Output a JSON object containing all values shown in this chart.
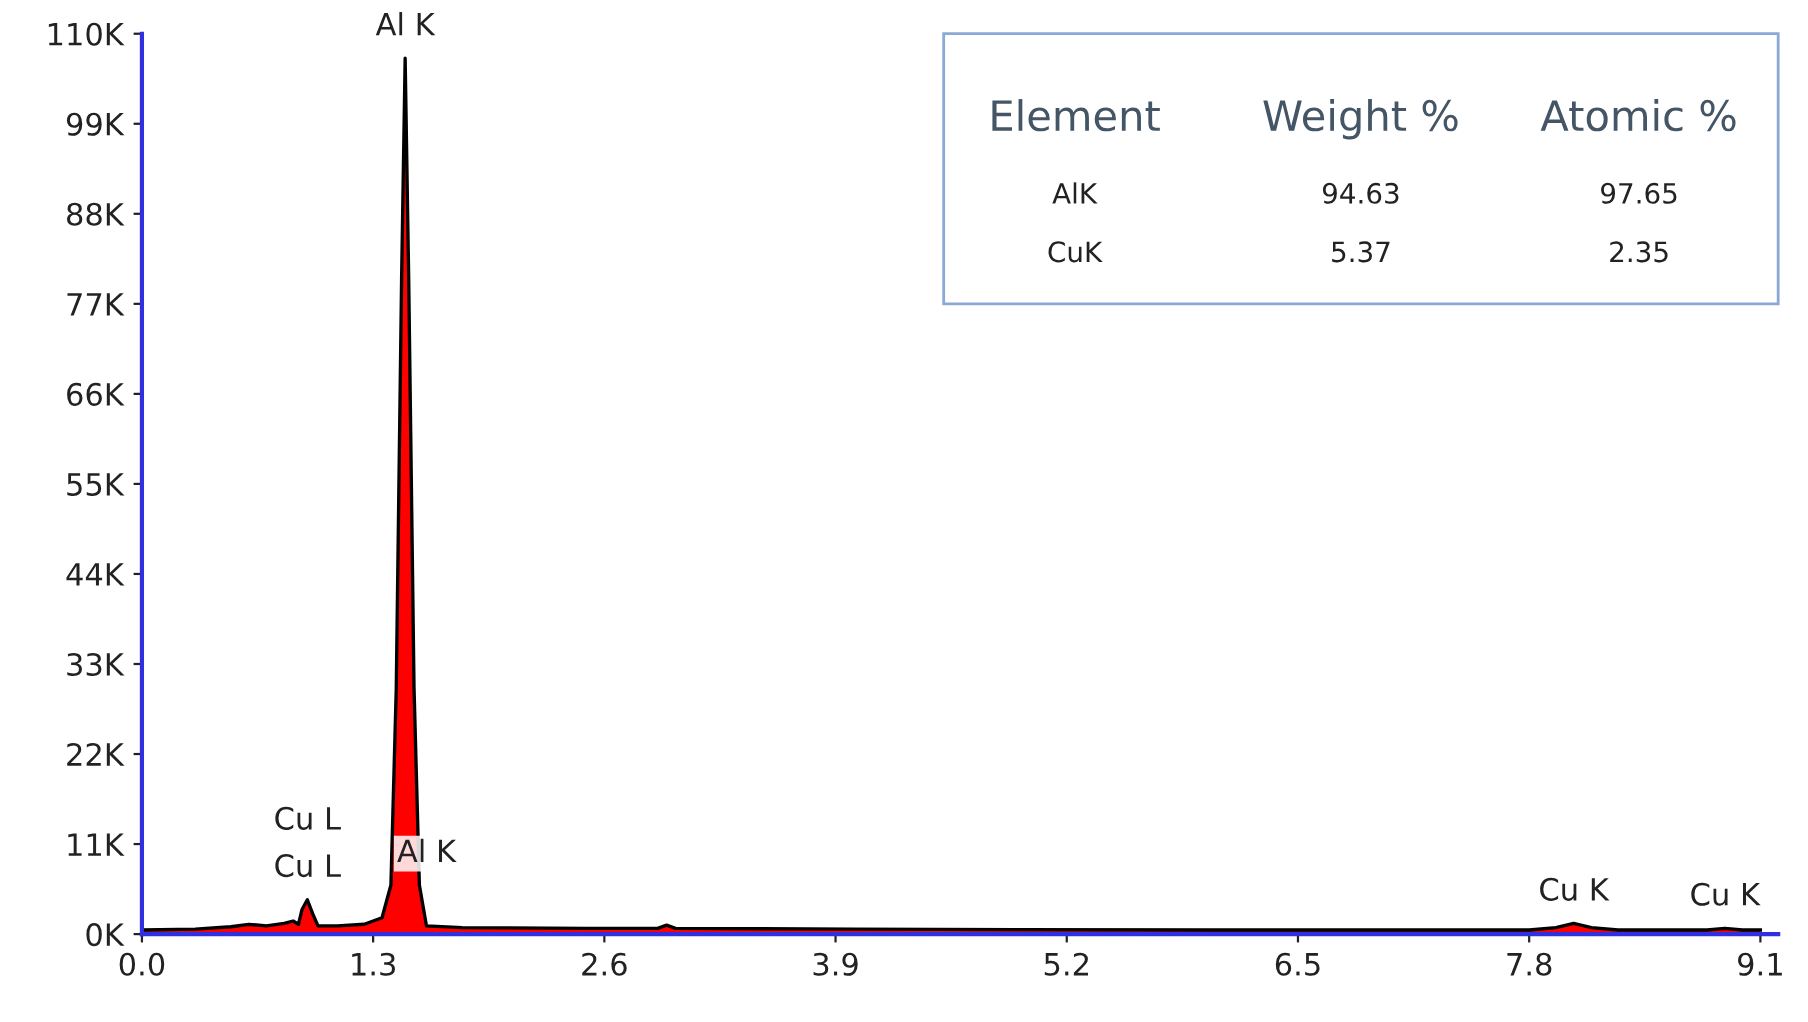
{
  "chart_data": {
    "type": "area",
    "x": [
      0.0,
      0.3,
      0.5,
      0.6,
      0.7,
      0.8,
      0.85,
      0.88,
      0.9,
      0.93,
      0.96,
      0.99,
      1.1,
      1.25,
      1.35,
      1.4,
      1.43,
      1.46,
      1.48,
      1.5,
      1.53,
      1.56,
      1.6,
      1.8,
      2.5,
      2.9,
      2.95,
      3.0,
      4.0,
      6.0,
      7.8,
      7.95,
      8.05,
      8.15,
      8.3,
      8.8,
      8.9,
      9.0,
      9.1
    ],
    "series": [
      {
        "color": "#ff0000",
        "values": [
          500,
          600,
          900,
          1200,
          1000,
          1300,
          1600,
          1200,
          3000,
          4200,
          2500,
          1000,
          1000,
          1200,
          2000,
          6000,
          30000,
          80000,
          107000,
          80000,
          30000,
          6000,
          1000,
          800,
          700,
          700,
          1100,
          700,
          600,
          500,
          500,
          800,
          1300,
          800,
          500,
          500,
          700,
          500,
          500
        ]
      }
    ],
    "xlim": [
      0.0,
      9.2
    ],
    "xticks": [
      {
        "value": 0,
        "label": "0.0"
      },
      1.3,
      2.6,
      3.9,
      5.2,
      6.5,
      7.8,
      9.1
    ],
    "ylim": [
      0,
      110000
    ],
    "yticks": [
      {
        "value": 0,
        "label": "0K"
      },
      {
        "value": 11000,
        "label": "11K"
      },
      {
        "value": 22000,
        "label": "22K"
      },
      {
        "value": 33000,
        "label": "33K"
      },
      {
        "value": 44000,
        "label": "44K"
      },
      {
        "value": 55000,
        "label": "55K"
      },
      {
        "value": 66000,
        "label": "66K"
      },
      {
        "value": 77000,
        "label": "77K"
      },
      {
        "value": 88000,
        "label": "88K"
      },
      {
        "value": 99000,
        "label": "99K"
      },
      {
        "value": 110000,
        "label": "110K"
      }
    ],
    "grid": false,
    "annotations": [
      {
        "text": "Al K",
        "x": 1.48,
        "y": 107000
      },
      {
        "text": "Cu L",
        "x": 0.93,
        "y": 4200
      },
      {
        "text": "Cu L",
        "x": 0.93,
        "y": 4200
      },
      {
        "text": "Al K",
        "x": 1.6,
        "y": 6000
      },
      {
        "text": "Cu K",
        "x": 8.05,
        "y": 1300
      },
      {
        "text": "Cu K",
        "x": 8.9,
        "y": 700
      },
      "Element",
      "Weight %",
      "Atomic %",
      "AlK",
      "94.63",
      "97.65",
      "CuK",
      "5.37",
      "2.35"
    ]
  }
}
